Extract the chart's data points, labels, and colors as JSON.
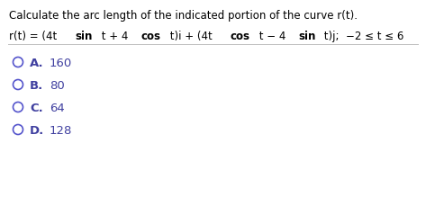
{
  "title_line": "Calculate the arc length of the indicated portion of the curve r(t).",
  "eq_parts": [
    {
      "text": "r(t) = (4t ",
      "bold": false
    },
    {
      "text": "sin",
      "bold": true
    },
    {
      "text": " t + 4 ",
      "bold": false
    },
    {
      "text": "cos",
      "bold": true
    },
    {
      "text": " t)i + (4t ",
      "bold": false
    },
    {
      "text": "cos",
      "bold": true
    },
    {
      "text": " t − 4 ",
      "bold": false
    },
    {
      "text": "sin",
      "bold": true
    },
    {
      "text": " t)j;  −2 ≤ t ≤ 6",
      "bold": false
    }
  ],
  "options": [
    {
      "label": "A.",
      "value": "160"
    },
    {
      "label": "B.",
      "value": "80"
    },
    {
      "label": "C.",
      "value": "64"
    },
    {
      "label": "D.",
      "value": "128"
    }
  ],
  "bg_color": "#ffffff",
  "text_color": "#000000",
  "option_color": "#4040a0",
  "circle_color": "#5555cc",
  "divider_color": "#c0c0c0",
  "title_fontsize": 8.5,
  "eq_fontsize": 8.5,
  "option_fontsize": 9.5
}
